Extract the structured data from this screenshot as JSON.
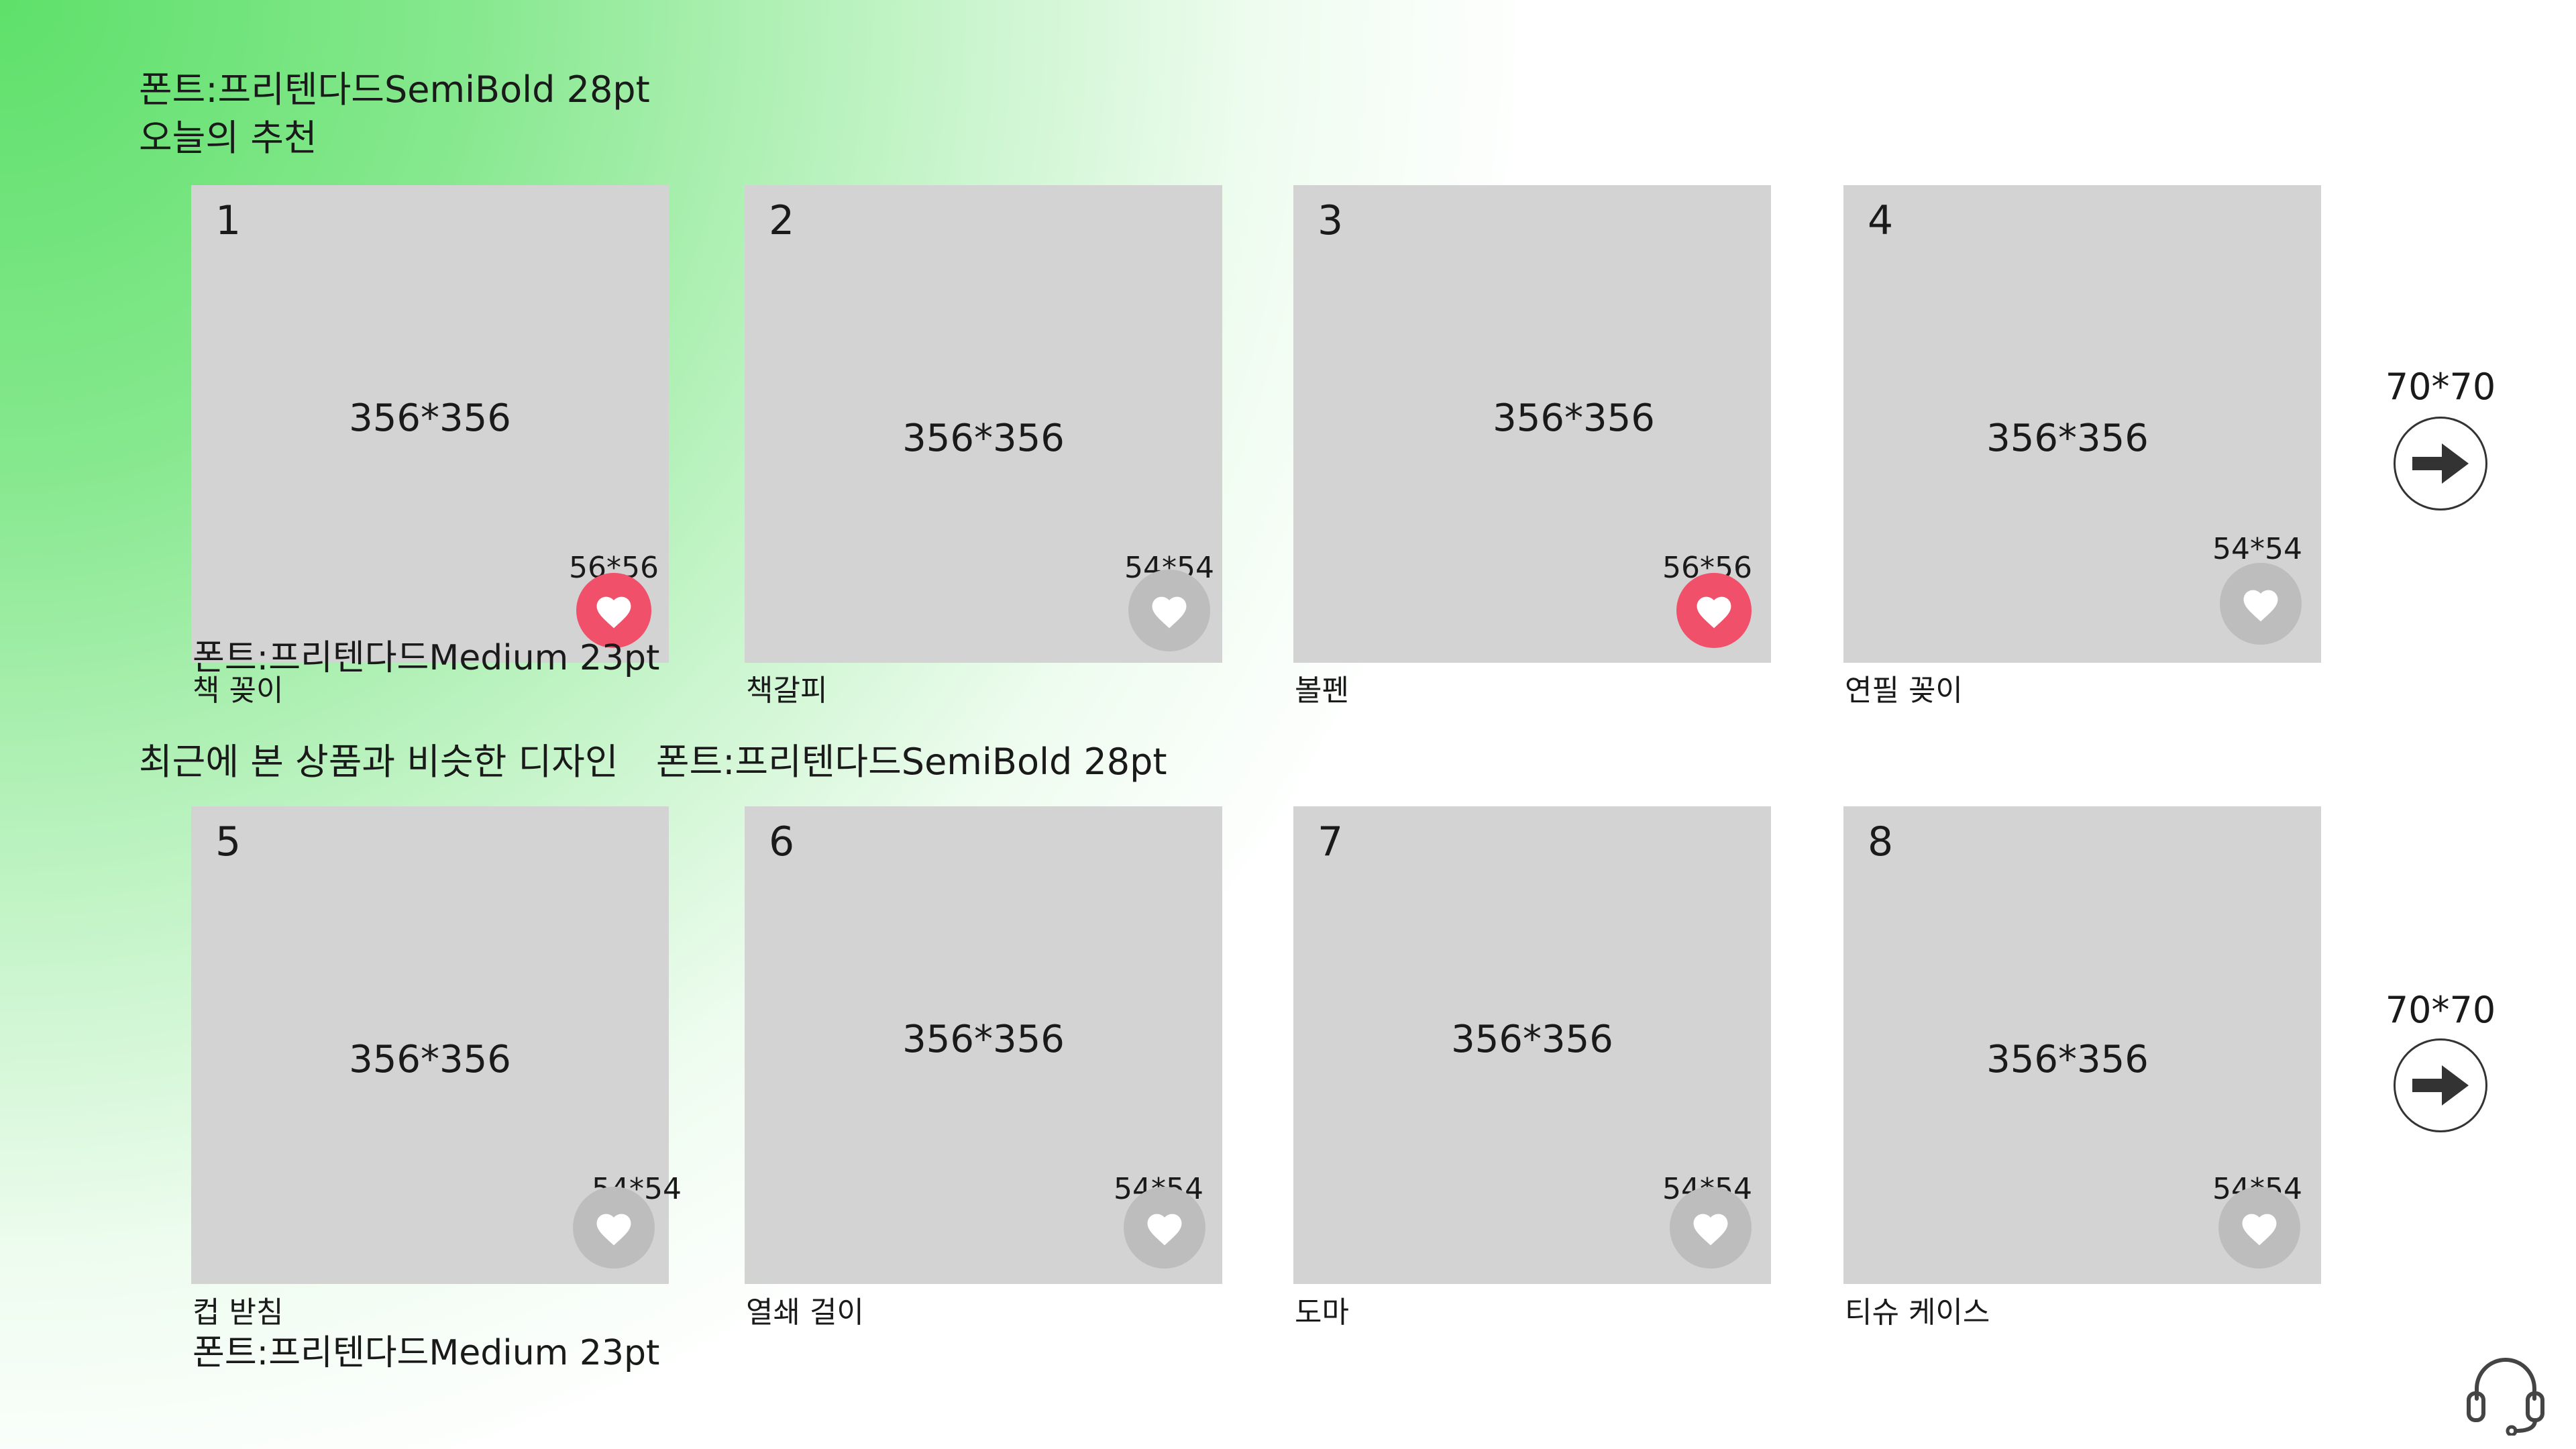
{
  "sections": [
    {
      "note": "폰트:프리텐다드SemiBold 28pt",
      "title": "오늘의 추천",
      "name_font_note": "폰트:프리텐다드Medium 23pt",
      "arrow_size": "70*70",
      "items": [
        {
          "num": "1",
          "size": "356*356",
          "heart_size": "56*56",
          "liked": true,
          "name": "책 꽂이"
        },
        {
          "num": "2",
          "size": "356*356",
          "heart_size": "54*54",
          "liked": false,
          "name": "책갈피"
        },
        {
          "num": "3",
          "size": "356*356",
          "heart_size": "56*56",
          "liked": true,
          "name": "볼펜"
        },
        {
          "num": "4",
          "size": "356*356",
          "heart_size": "54*54",
          "liked": false,
          "name": "연필 꽂이"
        }
      ]
    },
    {
      "title": "최근에 본 상품과 비슷한 디자인",
      "note": "폰트:프리텐다드SemiBold 28pt",
      "name_font_note": "폰트:프리텐다드Medium 23pt",
      "arrow_size": "70*70",
      "items": [
        {
          "num": "5",
          "size": "356*356",
          "heart_size": "54*54",
          "liked": false,
          "name": "컵 받침"
        },
        {
          "num": "6",
          "size": "356*356",
          "heart_size": "54*54",
          "liked": false,
          "name": "열쇄 걸이"
        },
        {
          "num": "7",
          "size": "356*356",
          "heart_size": "54*54",
          "liked": false,
          "name": "도마"
        },
        {
          "num": "8",
          "size": "356*356",
          "heart_size": "54*54",
          "liked": false,
          "name": "티슈 케이스"
        }
      ]
    }
  ],
  "colors": {
    "heart_on": "#f0506a",
    "heart_off": "#bdbdbd",
    "card_bg": "#d3d3d3",
    "gradient_green": "#5ee06a"
  },
  "icons": {
    "heart": "heart-icon",
    "arrow": "arrow-right-icon",
    "support": "headset-icon"
  }
}
